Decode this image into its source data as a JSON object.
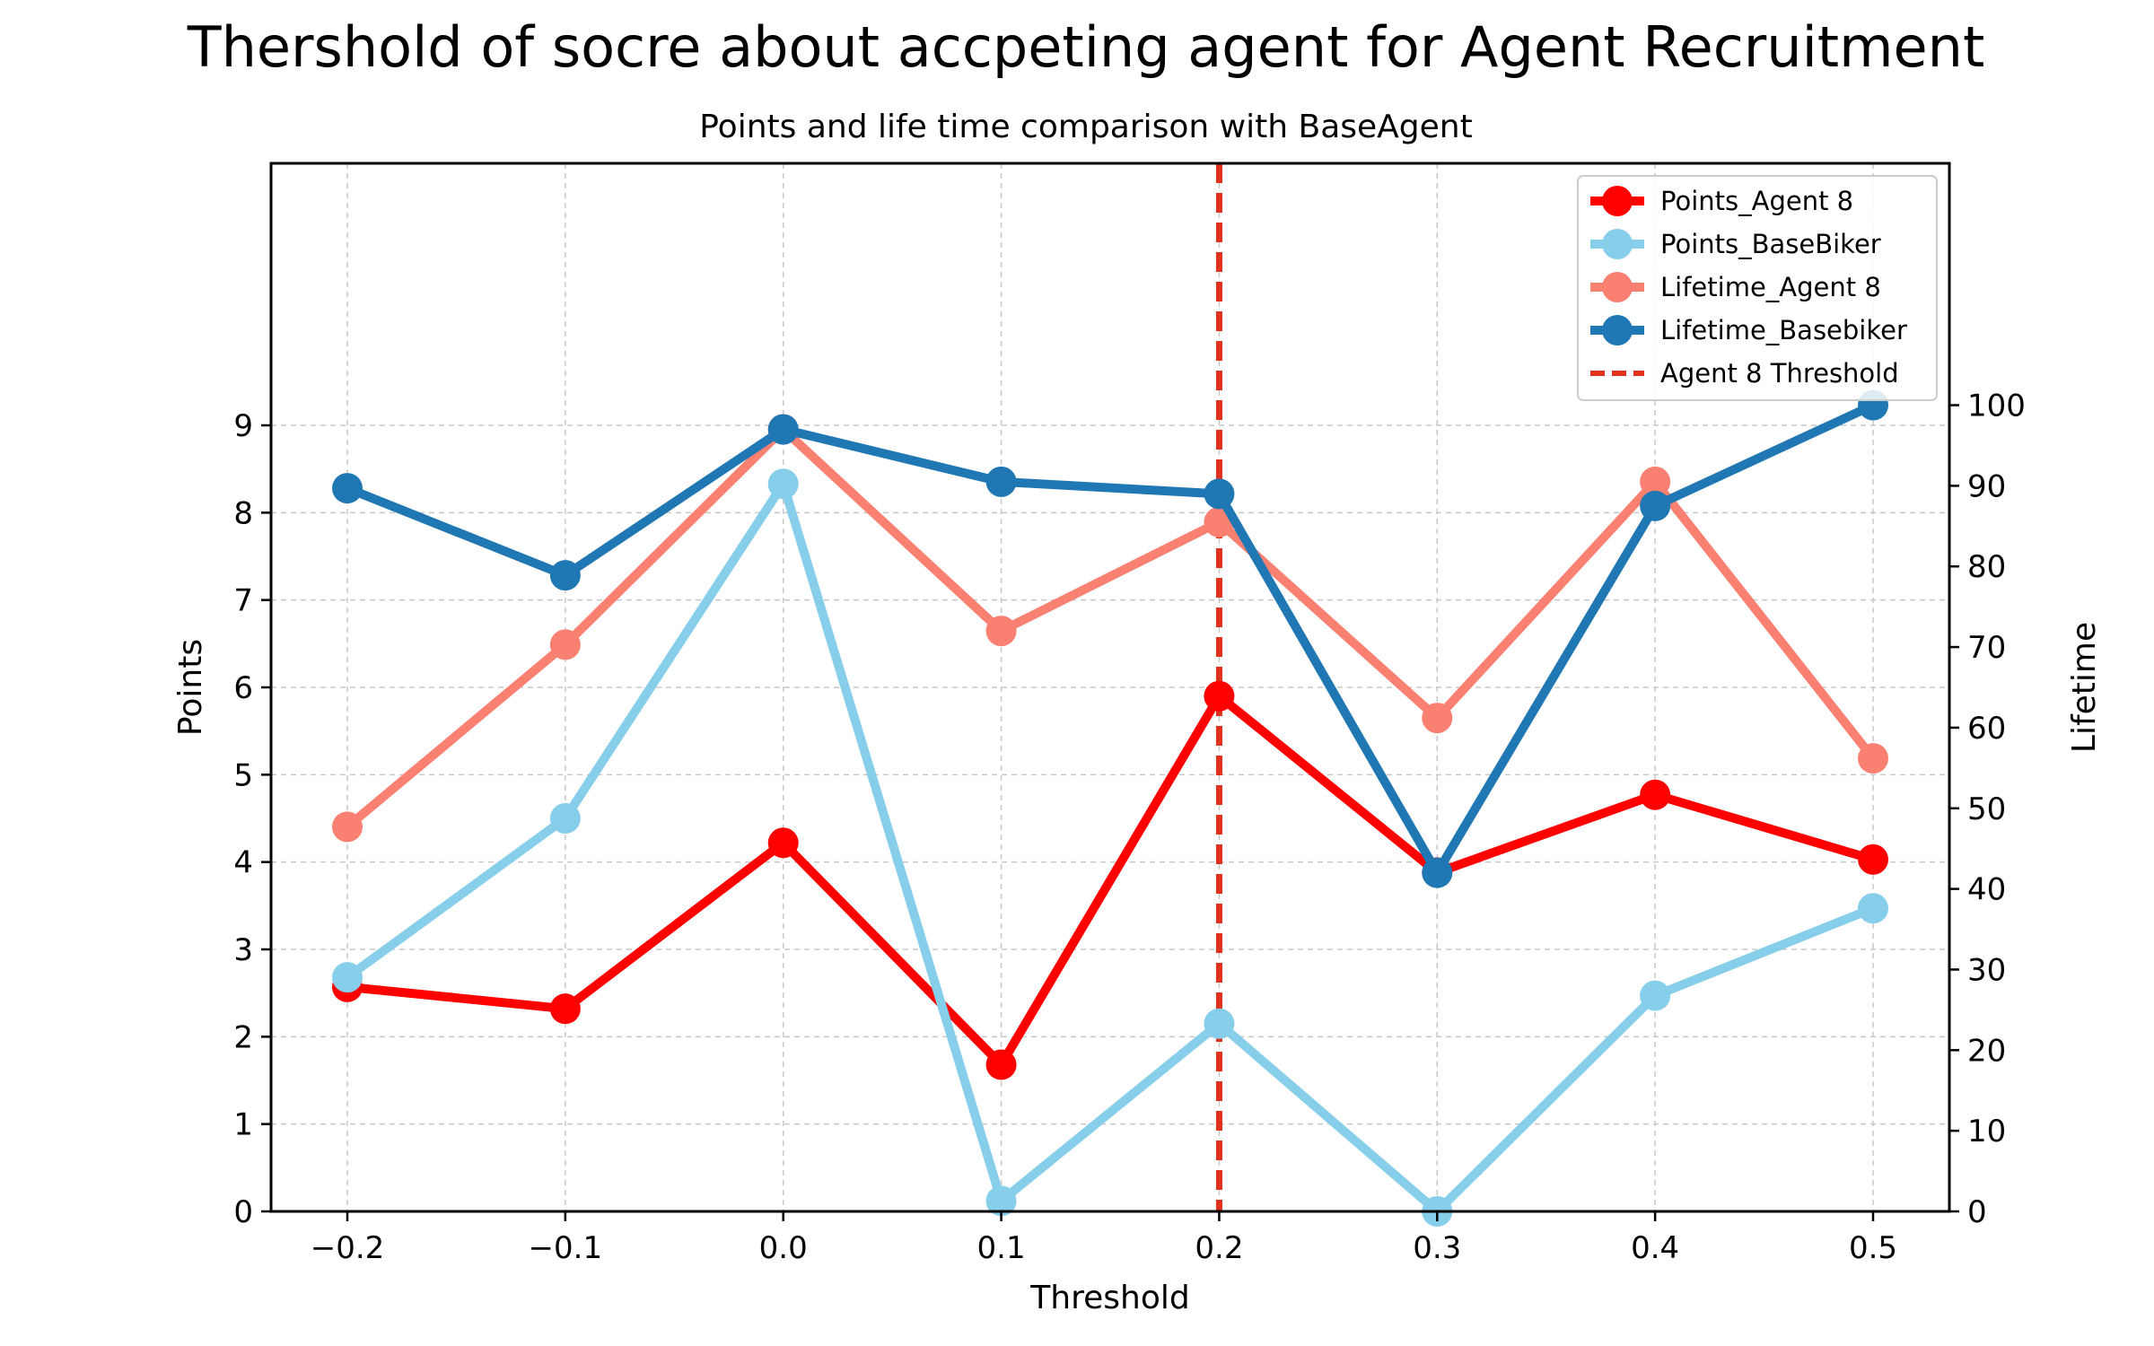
{
  "chart_data": {
    "type": "line",
    "title": "Thershold of socre about accpeting agent for Agent Recruitment",
    "subtitle": "Points and life time comparison with BaseAgent",
    "xlabel": "Threshold",
    "ylabel_left": "Points",
    "ylabel_right": "Lifetime",
    "x": [
      -0.2,
      -0.1,
      0.0,
      0.1,
      0.2,
      0.3,
      0.4,
      0.5
    ],
    "x_tick_labels": [
      "−0.2",
      "−0.1",
      "0.0",
      "0.1",
      "0.2",
      "0.3",
      "0.4",
      "0.5"
    ],
    "xlim": [
      -0.235,
      0.535
    ],
    "ylim_left": [
      0,
      12
    ],
    "yticks_left": [
      "0",
      "1",
      "2",
      "3",
      "4",
      "5",
      "6",
      "7",
      "8",
      "9"
    ],
    "ylim_right": [
      0,
      130
    ],
    "yticks_right": [
      "0",
      "10",
      "20",
      "30",
      "40",
      "50",
      "60",
      "70",
      "80",
      "90",
      "100"
    ],
    "grid": true,
    "legend_position": "upper right",
    "series": [
      {
        "name": "Points_Agent 8",
        "axis": "left",
        "color": "#ff0000",
        "values": [
          2.57,
          2.32,
          4.22,
          1.68,
          5.9,
          3.88,
          4.77,
          4.03
        ]
      },
      {
        "name": "Points_BaseBiker",
        "axis": "left",
        "color": "#87ceeb",
        "values": [
          2.68,
          4.5,
          8.33,
          0.12,
          2.15,
          0.0,
          2.47,
          3.47
        ]
      },
      {
        "name": "Lifetime_Agent 8",
        "axis": "right",
        "color": "#fa8072",
        "values": [
          47.7,
          70.3,
          97.0,
          72.0,
          85.5,
          61.2,
          90.5,
          56.2
        ]
      },
      {
        "name": "Lifetime_Basebiker",
        "axis": "right",
        "color": "#1f77b4",
        "values": [
          89.7,
          78.9,
          97.0,
          90.5,
          89.0,
          42.0,
          87.5,
          100.0
        ]
      }
    ],
    "threshold_line": {
      "name": "Agent 8 Threshold",
      "x": 0.2,
      "color": "#e0301e",
      "style": "dashed"
    }
  }
}
